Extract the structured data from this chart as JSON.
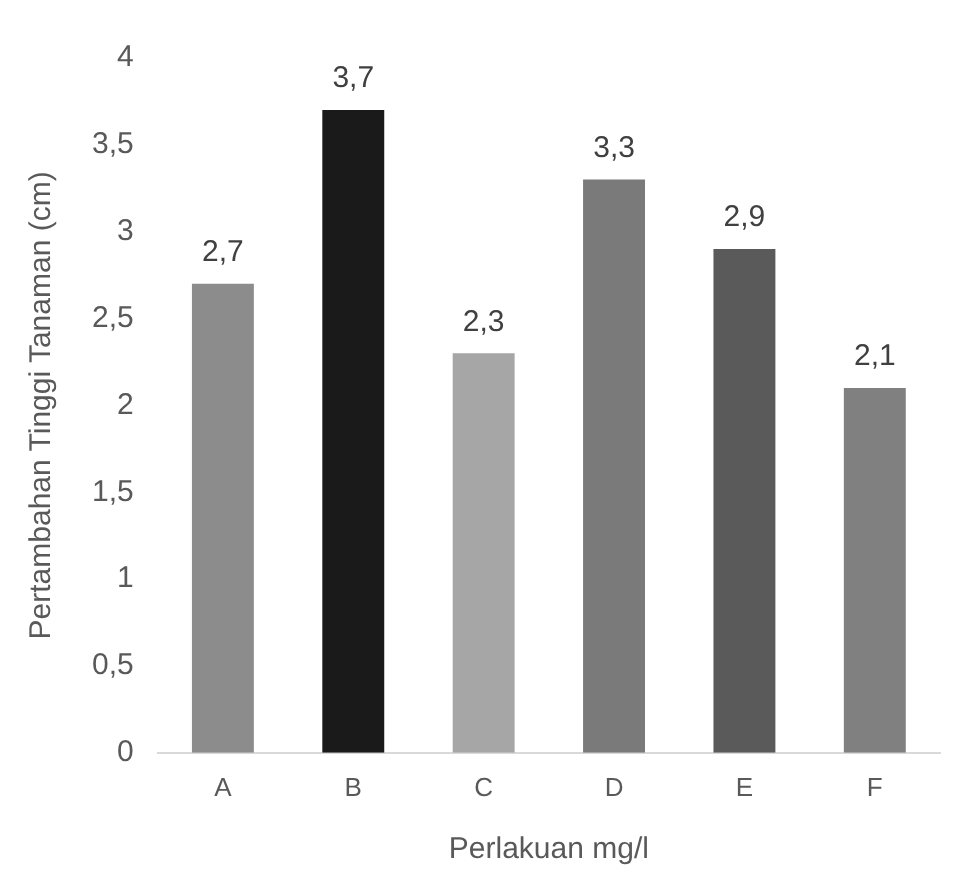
{
  "chart_data": {
    "type": "bar",
    "xlabel": "Perlakuan mg/l",
    "ylabel": "Pertambahan Tinggi Tanaman (cm)",
    "categories": [
      "A",
      "B",
      "C",
      "D",
      "E",
      "F"
    ],
    "values": [
      2.7,
      3.7,
      2.3,
      3.3,
      2.9,
      2.1
    ],
    "colors": [
      "#8c8c8c",
      "#1a1a1a",
      "#a6a6a6",
      "#7a7a7a",
      "#5a5a5a",
      "#808080"
    ],
    "value_labels": [
      "2,7",
      "3,7",
      "2,3",
      "3,3",
      "2,9",
      "2,1"
    ],
    "ylim": [
      0,
      4
    ],
    "yticks": [
      0,
      {
        "value": 0.5,
        "label": "0,5"
      },
      1,
      {
        "value": 1.5,
        "label": "1,5"
      },
      2,
      {
        "value": 2.5,
        "label": "2,5"
      },
      3,
      {
        "value": 3.5,
        "label": "3,5"
      },
      4
    ],
    "grid": false,
    "legend": false
  }
}
